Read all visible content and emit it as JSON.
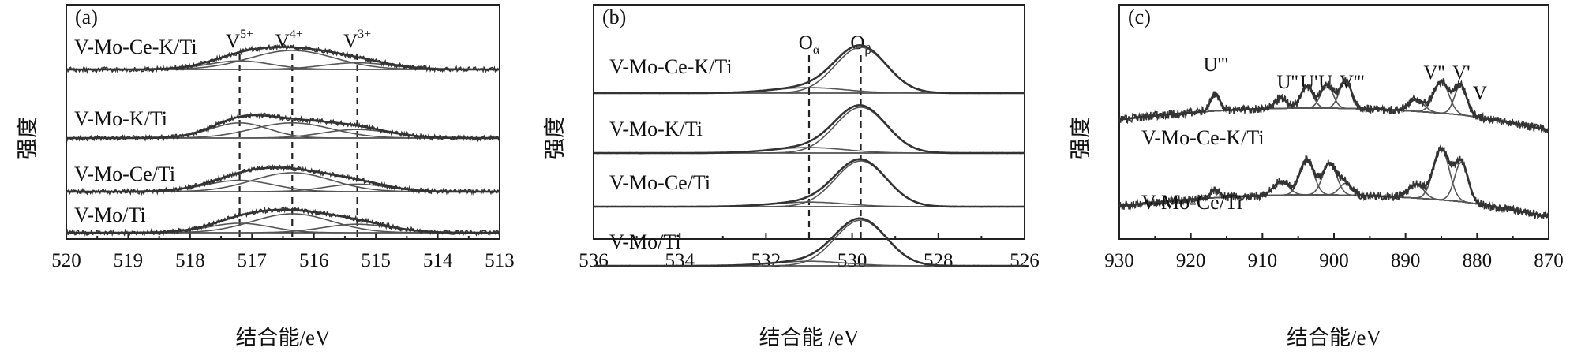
{
  "ylabel": "强度",
  "chart_data": [
    {
      "panel": "(a)",
      "type": "line",
      "xlabel": "结合能/eV",
      "xlim": [
        520,
        513
      ],
      "xticks": [
        520,
        519,
        518,
        517,
        516,
        515,
        514,
        513
      ],
      "peak_labels": [
        {
          "base": "V",
          "sup": "5+",
          "x": 517.2
        },
        {
          "base": "V",
          "sup": "4+",
          "x": 516.4
        },
        {
          "base": "V",
          "sup": "3+",
          "x": 515.3
        }
      ],
      "guide_lines": [
        517.2,
        516.35,
        515.3
      ],
      "series": [
        {
          "name": "V-Mo-Ce-K/Ti",
          "components": [
            {
              "center": 517.2,
              "height": 0.45,
              "fwhm": 1.2
            },
            {
              "center": 516.35,
              "height": 1.0,
              "fwhm": 1.6
            },
            {
              "center": 515.3,
              "height": 0.35,
              "fwhm": 1.3
            }
          ]
        },
        {
          "name": "V-Mo-K/Ti",
          "components": [
            {
              "center": 517.2,
              "height": 0.8,
              "fwhm": 1.1
            },
            {
              "center": 516.35,
              "height": 0.8,
              "fwhm": 1.5
            },
            {
              "center": 515.3,
              "height": 0.45,
              "fwhm": 1.3
            }
          ]
        },
        {
          "name": "V-Mo-Ce/Ti",
          "components": [
            {
              "center": 517.2,
              "height": 0.6,
              "fwhm": 1.3
            },
            {
              "center": 516.35,
              "height": 1.0,
              "fwhm": 1.5
            },
            {
              "center": 515.3,
              "height": 0.4,
              "fwhm": 1.2
            }
          ]
        },
        {
          "name": "V-Mo/Ti",
          "components": [
            {
              "center": 517.2,
              "height": 0.5,
              "fwhm": 1.2
            },
            {
              "center": 516.35,
              "height": 1.0,
              "fwhm": 1.5
            },
            {
              "center": 515.3,
              "height": 0.45,
              "fwhm": 1.3
            }
          ]
        }
      ]
    },
    {
      "panel": "(b)",
      "type": "line",
      "xlabel": "结合能 /eV",
      "xlim": [
        536,
        526
      ],
      "xticks": [
        536,
        534,
        532,
        530,
        528,
        526
      ],
      "peak_labels": [
        {
          "base": "O",
          "sub": "α",
          "x": 531.0
        },
        {
          "base": "O",
          "sub": "β",
          "x": 529.8
        }
      ],
      "guide_lines": [
        531.0,
        529.8
      ],
      "series": [
        {
          "name": "V-Mo-Ce-K/Ti",
          "components": [
            {
              "center": 531.0,
              "height": 0.12,
              "fwhm": 2.0
            },
            {
              "center": 529.8,
              "height": 1.0,
              "fwhm": 1.4
            }
          ]
        },
        {
          "name": "V-Mo-K/Ti",
          "components": [
            {
              "center": 531.0,
              "height": 0.12,
              "fwhm": 2.0
            },
            {
              "center": 529.8,
              "height": 1.0,
              "fwhm": 1.4
            }
          ]
        },
        {
          "name": "V-Mo-Ce/Ti",
          "components": [
            {
              "center": 531.0,
              "height": 0.1,
              "fwhm": 2.0
            },
            {
              "center": 529.8,
              "height": 1.0,
              "fwhm": 1.4
            }
          ]
        },
        {
          "name": "V-Mo/Ti",
          "components": [
            {
              "center": 531.0,
              "height": 0.1,
              "fwhm": 2.0
            },
            {
              "center": 529.8,
              "height": 1.0,
              "fwhm": 1.4
            }
          ]
        }
      ]
    },
    {
      "panel": "(c)",
      "type": "line",
      "xlabel": "结合能/eV",
      "xlim": [
        930,
        870
      ],
      "xticks": [
        930,
        920,
        910,
        900,
        890,
        880,
        870
      ],
      "peak_labels": [
        {
          "text": "U'''",
          "x": 916.5
        },
        {
          "text": "U''",
          "x": 906.5
        },
        {
          "text": "U'",
          "x": 903.5
        },
        {
          "text": "U",
          "x": 901.2
        },
        {
          "text": "V'''",
          "x": 897.5
        },
        {
          "text": "V''",
          "x": 886.0
        },
        {
          "text": "V'",
          "x": 882.2
        },
        {
          "text": "V",
          "x": 879.6
        }
      ],
      "guide_lines": [],
      "series": [
        {
          "name": "V-Mo-Ce-K/Ti",
          "components": [
            {
              "center": 916.6,
              "height": 0.45,
              "fwhm": 1.5
            },
            {
              "center": 907.4,
              "height": 0.25,
              "fwhm": 2.0
            },
            {
              "center": 903.8,
              "height": 0.55,
              "fwhm": 2.0
            },
            {
              "center": 901.0,
              "height": 0.6,
              "fwhm": 2.0
            },
            {
              "center": 898.4,
              "height": 0.7,
              "fwhm": 2.0
            },
            {
              "center": 888.5,
              "height": 0.3,
              "fwhm": 2.5
            },
            {
              "center": 885.0,
              "height": 0.8,
              "fwhm": 2.5
            },
            {
              "center": 882.3,
              "height": 0.75,
              "fwhm": 2.0
            }
          ]
        },
        {
          "name": "V-Mo-Ce/Ti",
          "components": [
            {
              "center": 916.6,
              "height": 0.2,
              "fwhm": 1.5
            },
            {
              "center": 907.4,
              "height": 0.35,
              "fwhm": 2.5
            },
            {
              "center": 903.8,
              "height": 0.9,
              "fwhm": 2.3
            },
            {
              "center": 900.6,
              "height": 0.8,
              "fwhm": 2.3
            },
            {
              "center": 898.4,
              "height": 0.3,
              "fwhm": 2.0
            },
            {
              "center": 888.5,
              "height": 0.35,
              "fwhm": 2.5
            },
            {
              "center": 885.0,
              "height": 1.3,
              "fwhm": 2.6
            },
            {
              "center": 882.2,
              "height": 1.0,
              "fwhm": 2.2
            }
          ]
        }
      ]
    }
  ]
}
